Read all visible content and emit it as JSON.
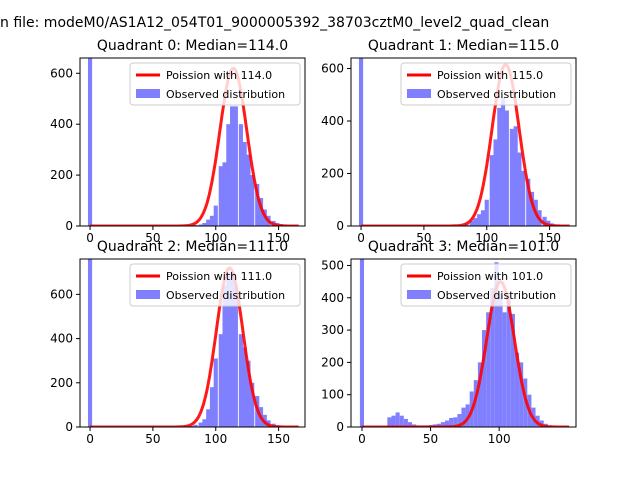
{
  "suptitle": "n file: modeM0/AS1A12_054T01_9000005392_38703cztM0_level2_quad_clean",
  "colors": {
    "poisson": "#ff0000",
    "observed": "#8080ff",
    "axis": "#000000"
  },
  "chart_data": [
    {
      "type": "bar",
      "title": "Quadrant 0: Median=114.0",
      "xlim": [
        -8,
        171
      ],
      "ylim": [
        0,
        660
      ],
      "xticks": [
        0,
        50,
        100,
        150
      ],
      "yticks": [
        0,
        200,
        400,
        600
      ],
      "legend_position": "upper-right",
      "series": [
        {
          "name": "Poission with 114.0",
          "kind": "line",
          "mean": 114.0,
          "peak": 620
        },
        {
          "name": "Observed distribution",
          "kind": "hist",
          "bin_width": 3.3,
          "bins": [
            {
              "x": 0,
              "y": 660
            },
            {
              "x": 81,
              "y": 2
            },
            {
              "x": 84,
              "y": 4
            },
            {
              "x": 88,
              "y": 6
            },
            {
              "x": 91,
              "y": 12
            },
            {
              "x": 94,
              "y": 25
            },
            {
              "x": 97,
              "y": 40
            },
            {
              "x": 100,
              "y": 80
            },
            {
              "x": 104,
              "y": 235
            },
            {
              "x": 107,
              "y": 250
            },
            {
              "x": 110,
              "y": 400
            },
            {
              "x": 113,
              "y": 470
            },
            {
              "x": 116,
              "y": 470
            },
            {
              "x": 120,
              "y": 400
            },
            {
              "x": 123,
              "y": 330
            },
            {
              "x": 126,
              "y": 280
            },
            {
              "x": 129,
              "y": 200
            },
            {
              "x": 133,
              "y": 165
            },
            {
              "x": 136,
              "y": 110
            },
            {
              "x": 139,
              "y": 65
            },
            {
              "x": 142,
              "y": 40
            },
            {
              "x": 146,
              "y": 20
            },
            {
              "x": 149,
              "y": 12
            },
            {
              "x": 152,
              "y": 8
            },
            {
              "x": 155,
              "y": 3
            }
          ]
        }
      ]
    },
    {
      "type": "bar",
      "title": "Quadrant 1: Median=115.0",
      "xlim": [
        -8,
        171
      ],
      "ylim": [
        0,
        640
      ],
      "xticks": [
        0,
        50,
        100,
        150
      ],
      "yticks": [
        0,
        200,
        400,
        600
      ],
      "legend_position": "upper-right",
      "series": [
        {
          "name": "Poission with 115.0",
          "kind": "line",
          "mean": 115.0,
          "peak": 615
        },
        {
          "name": "Observed distribution",
          "kind": "hist",
          "bin_width": 3.3,
          "bins": [
            {
              "x": 0,
              "y": 640
            },
            {
              "x": 81,
              "y": 3
            },
            {
              "x": 84,
              "y": 8
            },
            {
              "x": 88,
              "y": 20
            },
            {
              "x": 91,
              "y": 30
            },
            {
              "x": 94,
              "y": 45
            },
            {
              "x": 97,
              "y": 60
            },
            {
              "x": 100,
              "y": 100
            },
            {
              "x": 104,
              "y": 270
            },
            {
              "x": 107,
              "y": 330
            },
            {
              "x": 110,
              "y": 450
            },
            {
              "x": 113,
              "y": 490
            },
            {
              "x": 116,
              "y": 440
            },
            {
              "x": 120,
              "y": 370
            },
            {
              "x": 123,
              "y": 380
            },
            {
              "x": 126,
              "y": 280
            },
            {
              "x": 129,
              "y": 210
            },
            {
              "x": 133,
              "y": 180
            },
            {
              "x": 136,
              "y": 130
            },
            {
              "x": 139,
              "y": 100
            },
            {
              "x": 142,
              "y": 60
            },
            {
              "x": 146,
              "y": 35
            },
            {
              "x": 149,
              "y": 20
            },
            {
              "x": 152,
              "y": 10
            },
            {
              "x": 155,
              "y": 4
            }
          ]
        }
      ]
    },
    {
      "type": "bar",
      "title": "Quadrant 2: Median=111.0",
      "xlim": [
        -8,
        171
      ],
      "ylim": [
        0,
        760
      ],
      "xticks": [
        0,
        50,
        100,
        150
      ],
      "yticks": [
        0,
        200,
        400,
        600
      ],
      "legend_position": "upper-right",
      "series": [
        {
          "name": "Poission with 111.0",
          "kind": "line",
          "mean": 111.0,
          "peak": 720
        },
        {
          "name": "Observed distribution",
          "kind": "hist",
          "bin_width": 3.3,
          "bins": [
            {
              "x": 0,
              "y": 760
            },
            {
              "x": 78,
              "y": 2
            },
            {
              "x": 81,
              "y": 5
            },
            {
              "x": 84,
              "y": 10
            },
            {
              "x": 88,
              "y": 20
            },
            {
              "x": 91,
              "y": 35
            },
            {
              "x": 94,
              "y": 80
            },
            {
              "x": 97,
              "y": 180
            },
            {
              "x": 100,
              "y": 310
            },
            {
              "x": 104,
              "y": 420
            },
            {
              "x": 107,
              "y": 640
            },
            {
              "x": 110,
              "y": 700
            },
            {
              "x": 113,
              "y": 700
            },
            {
              "x": 116,
              "y": 640
            },
            {
              "x": 120,
              "y": 420
            },
            {
              "x": 123,
              "y": 360
            },
            {
              "x": 126,
              "y": 300
            },
            {
              "x": 129,
              "y": 200
            },
            {
              "x": 133,
              "y": 140
            },
            {
              "x": 136,
              "y": 90
            },
            {
              "x": 139,
              "y": 55
            },
            {
              "x": 142,
              "y": 30
            },
            {
              "x": 146,
              "y": 15
            },
            {
              "x": 149,
              "y": 8
            },
            {
              "x": 152,
              "y": 3
            }
          ]
        }
      ]
    },
    {
      "type": "bar",
      "title": "Quadrant 3: Median=101.0",
      "xlim": [
        -8,
        156
      ],
      "ylim": [
        0,
        520
      ],
      "xticks": [
        0,
        50,
        100
      ],
      "yticks": [
        0,
        100,
        200,
        300,
        400,
        500
      ],
      "legend_position": "upper-right",
      "series": [
        {
          "name": "Poission with 101.0",
          "kind": "line",
          "mean": 101.0,
          "peak": 450
        },
        {
          "name": "Observed distribution",
          "kind": "hist",
          "bin_width": 3.0,
          "bins": [
            {
              "x": 0,
              "y": 520
            },
            {
              "x": 20,
              "y": 30
            },
            {
              "x": 23,
              "y": 35
            },
            {
              "x": 26,
              "y": 45
            },
            {
              "x": 29,
              "y": 35
            },
            {
              "x": 32,
              "y": 25
            },
            {
              "x": 35,
              "y": 15
            },
            {
              "x": 38,
              "y": 8
            },
            {
              "x": 41,
              "y": 5
            },
            {
              "x": 44,
              "y": 5
            },
            {
              "x": 47,
              "y": 5
            },
            {
              "x": 50,
              "y": 6
            },
            {
              "x": 53,
              "y": 8
            },
            {
              "x": 56,
              "y": 10
            },
            {
              "x": 59,
              "y": 15
            },
            {
              "x": 62,
              "y": 20
            },
            {
              "x": 65,
              "y": 28
            },
            {
              "x": 68,
              "y": 30
            },
            {
              "x": 71,
              "y": 40
            },
            {
              "x": 74,
              "y": 60
            },
            {
              "x": 77,
              "y": 70
            },
            {
              "x": 80,
              "y": 110
            },
            {
              "x": 83,
              "y": 145
            },
            {
              "x": 86,
              "y": 200
            },
            {
              "x": 89,
              "y": 300
            },
            {
              "x": 92,
              "y": 355
            },
            {
              "x": 95,
              "y": 430
            },
            {
              "x": 98,
              "y": 510
            },
            {
              "x": 101,
              "y": 410
            },
            {
              "x": 104,
              "y": 355
            },
            {
              "x": 107,
              "y": 410
            },
            {
              "x": 110,
              "y": 350
            },
            {
              "x": 113,
              "y": 230
            },
            {
              "x": 116,
              "y": 200
            },
            {
              "x": 119,
              "y": 150
            },
            {
              "x": 122,
              "y": 100
            },
            {
              "x": 125,
              "y": 60
            },
            {
              "x": 128,
              "y": 35
            },
            {
              "x": 131,
              "y": 20
            },
            {
              "x": 134,
              "y": 10
            },
            {
              "x": 137,
              "y": 4
            }
          ]
        }
      ]
    }
  ]
}
